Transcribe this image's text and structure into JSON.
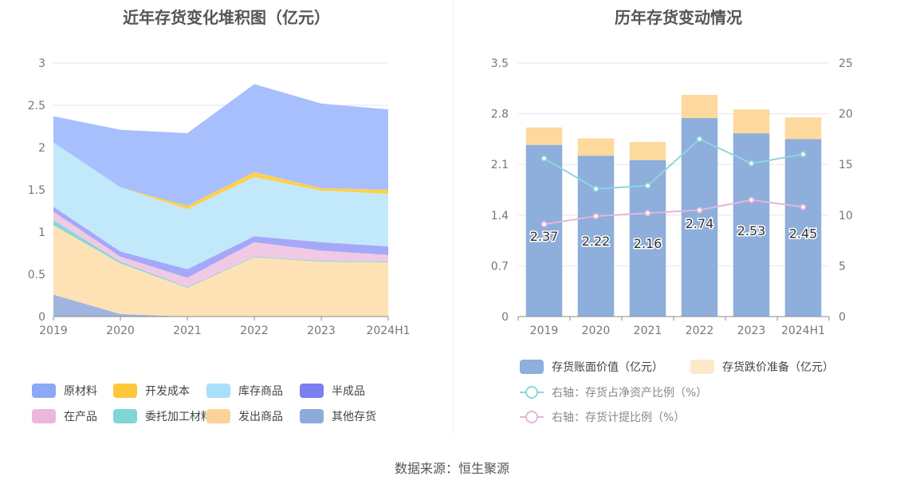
{
  "left_panel": {
    "title": "近年存货变化堆积图（亿元）"
  },
  "right_panel": {
    "title": "历年存货变动情况"
  },
  "source_text": "数据来源：恒生聚源",
  "chart_data": [
    {
      "type": "area",
      "title": "近年存货变化堆积图（亿元）",
      "x": [
        "2019",
        "2020",
        "2021",
        "2022",
        "2023",
        "2024H1"
      ],
      "y_ticks": [
        "0",
        "0.5",
        "1",
        "1.5",
        "2",
        "2.5",
        "3"
      ],
      "ylim": [
        0,
        3
      ],
      "stacked": true,
      "legend_position": "bottom",
      "series": [
        {
          "name": "其他存货",
          "color": "#9fb5df",
          "values": [
            0.26,
            0.03,
            0,
            0,
            0,
            0
          ]
        },
        {
          "name": "发出商品",
          "color": "#fee2b6",
          "values": [
            0.82,
            0.6,
            0.34,
            0.7,
            0.65,
            0.64
          ]
        },
        {
          "name": "委托加工材料",
          "color": "#8ad6d6",
          "values": [
            0.06,
            0.02,
            0.01,
            0.01,
            0.01,
            0.01
          ]
        },
        {
          "name": "在产品",
          "color": "#f0c9e4",
          "values": [
            0.1,
            0.06,
            0.11,
            0.17,
            0.12,
            0.08
          ]
        },
        {
          "name": "半成品",
          "color": "#a5a8f8",
          "values": [
            0.06,
            0.06,
            0.1,
            0.07,
            0.1,
            0.1
          ]
        },
        {
          "name": "库存商品",
          "color": "#c2e9fb",
          "values": [
            0.76,
            0.76,
            0.71,
            0.7,
            0.61,
            0.62
          ]
        },
        {
          "name": "开发成本",
          "color": "#ffd04f",
          "values": [
            0,
            0,
            0.04,
            0.06,
            0.03,
            0.05
          ]
        },
        {
          "name": "原材料",
          "color": "#a7bffc",
          "values": [
            0.31,
            0.68,
            0.86,
            1.04,
            1.0,
            0.95
          ]
        }
      ],
      "legend": [
        {
          "name": "原材料",
          "color": "#8ca8f7"
        },
        {
          "name": "开发成本",
          "color": "#ffc83a"
        },
        {
          "name": "库存商品",
          "color": "#a8dffa"
        },
        {
          "name": "半成品",
          "color": "#7b7ff0"
        },
        {
          "name": "在产品",
          "color": "#ebb8da"
        },
        {
          "name": "委托加工材料",
          "color": "#7fd6d6"
        },
        {
          "name": "发出商品",
          "color": "#fcd29a"
        },
        {
          "name": "其他存货",
          "color": "#8fabd9"
        }
      ]
    },
    {
      "type": "bar",
      "title": "历年存货变动情况",
      "categories": [
        "2019",
        "2020",
        "2021",
        "2022",
        "2023",
        "2024H1"
      ],
      "y_left_ticks": [
        "0",
        "0.7",
        "1.4",
        "2.1",
        "2.8",
        "3.5"
      ],
      "y_left_lim": [
        0,
        3.5
      ],
      "y_right_ticks": [
        "0",
        "5",
        "10",
        "15",
        "20",
        "25"
      ],
      "y_right_lim": [
        0,
        25
      ],
      "stacked": true,
      "legend_position": "bottom",
      "bar_series": [
        {
          "name": "存货账面价值（亿元）",
          "color": "#8eaedb",
          "values": [
            2.37,
            2.22,
            2.16,
            2.74,
            2.53,
            2.45
          ],
          "data_labels": [
            "2.37",
            "2.22",
            "2.16",
            "2.74",
            "2.53",
            "2.45"
          ]
        },
        {
          "name": "存货跌价准备（亿元）",
          "color": "#fdd99e",
          "values": [
            0.24,
            0.24,
            0.25,
            0.32,
            0.33,
            0.3
          ]
        }
      ],
      "line_series": [
        {
          "name": "右轴：存货占净资产比例（%）",
          "color": "#8fd5dc",
          "values": [
            15.6,
            12.6,
            12.9,
            17.5,
            15.1,
            16.0
          ]
        },
        {
          "name": "右轴：存货计提比例（%）",
          "color": "#e4b6da",
          "values": [
            9.1,
            9.9,
            10.2,
            10.5,
            11.5,
            10.8
          ]
        }
      ],
      "legend": [
        {
          "name": "存货账面价值（亿元）",
          "color": "#8eaedb",
          "kind": "box"
        },
        {
          "name": "存货跌价准备（亿元）",
          "color": "#fde8c8",
          "kind": "box"
        },
        {
          "name": "右轴：存货占净资产比例（%）",
          "color": "#8fd5dc",
          "kind": "line"
        },
        {
          "name": "右轴：存货计提比例（%）",
          "color": "#e4b6da",
          "kind": "line"
        }
      ]
    }
  ]
}
